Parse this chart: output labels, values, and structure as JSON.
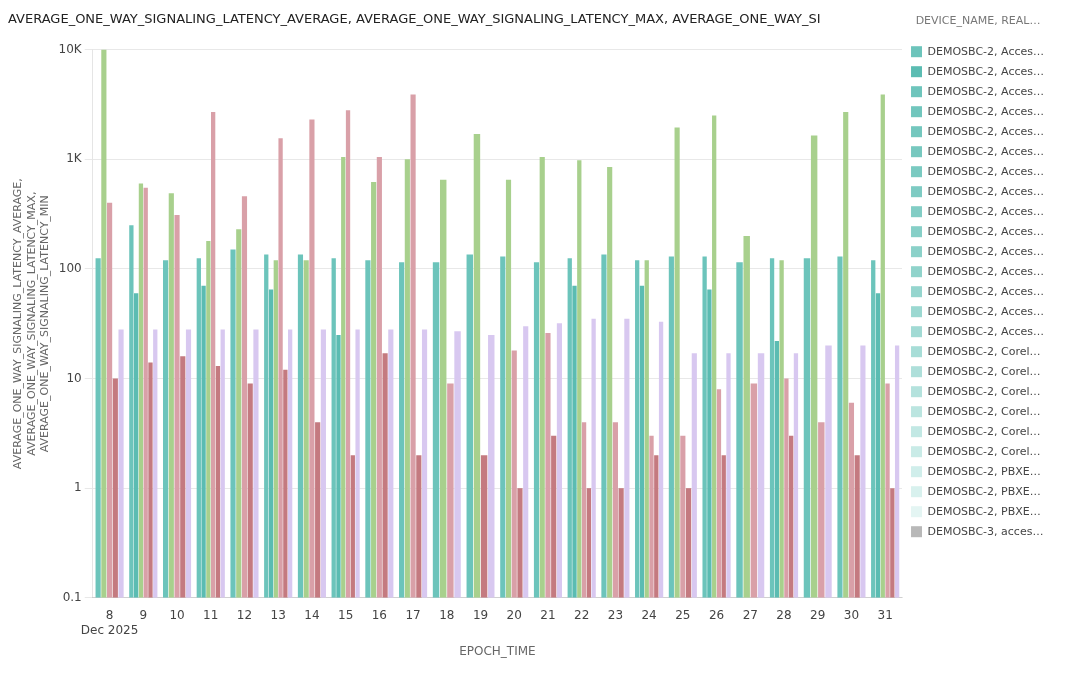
{
  "chart_data": {
    "type": "bar",
    "title": "AVERAGE_ONE_WAY_SIGNALING_LATENCY_AVERAGE, AVERAGE_ONE_WAY_SIGNALING_LATENCY_MAX, AVERAGE_ONE_WAY_SI",
    "xlabel": "EPOCH_TIME",
    "ylabel": "AVERAGE_ONE_WAY_SIGNALING_LATENCY_AVERAGE,\nAVERAGE_ONE_WAY_SIGNALING_LATENCY_MAX,\nAVERAGE_ONE_WAY_SIGNALING_LATENCY_MIN",
    "legend_title": "DEVICE_NAME, REAL…",
    "categories": [
      "8\nDec 2025",
      "9",
      "10",
      "11",
      "12",
      "13",
      "14",
      "15",
      "16",
      "17",
      "18",
      "19",
      "20",
      "21",
      "22",
      "23",
      "24",
      "25",
      "26",
      "27",
      "28",
      "29",
      "30",
      "31"
    ],
    "log": "y",
    "ylim": [
      0.1,
      10000
    ],
    "yticks": [
      0.1,
      1,
      10,
      100,
      {
        "value": 1000,
        "label": "1K"
      },
      {
        "value": 10000,
        "label": "10K"
      }
    ],
    "grid": "y",
    "legend": "right",
    "series": [
      {
        "name": "DEMOSBC-2, Acces…",
        "color": "#6cc4bb",
        "values": [
          125,
          250,
          120,
          125,
          150,
          135,
          135,
          125,
          120,
          115,
          115,
          135,
          130,
          115,
          125,
          135,
          120,
          130,
          130,
          115,
          125,
          125,
          130,
          120
        ]
      },
      {
        "name": "DEMOSBC-2, Acces…",
        "color": "#5bbcb2",
        "values": [
          null,
          60,
          null,
          70,
          null,
          65,
          null,
          25,
          null,
          null,
          null,
          null,
          null,
          null,
          70,
          null,
          70,
          null,
          65,
          null,
          22,
          null,
          null,
          60
        ]
      },
      {
        "name": "DEMOSBC-2, Acces…",
        "color": "#6ec5bc",
        "values": [
          null,
          null,
          null,
          null,
          null,
          null,
          null,
          null,
          null,
          null,
          null,
          null,
          null,
          null,
          null,
          null,
          null,
          null,
          null,
          null,
          null,
          null,
          null,
          null
        ]
      },
      {
        "name": "DEMOSBC-2, Acces…",
        "color": "#71c6bd",
        "values": [
          null,
          null,
          null,
          null,
          null,
          null,
          null,
          null,
          null,
          null,
          null,
          null,
          null,
          null,
          null,
          null,
          null,
          null,
          null,
          null,
          null,
          null,
          null,
          null
        ]
      },
      {
        "name": "DEMOSBC-2, Acces…",
        "color": "#74c7be",
        "values": [
          null,
          null,
          null,
          null,
          null,
          null,
          null,
          null,
          null,
          null,
          null,
          null,
          null,
          null,
          null,
          null,
          null,
          null,
          null,
          null,
          null,
          null,
          null,
          null
        ]
      },
      {
        "name": "DEMOSBC-2, Acces…",
        "color": "#77c8bf",
        "values": [
          null,
          null,
          null,
          null,
          null,
          null,
          null,
          null,
          null,
          null,
          null,
          null,
          null,
          null,
          null,
          null,
          null,
          null,
          null,
          null,
          null,
          null,
          null,
          null
        ]
      },
      {
        "name": "DEMOSBC-2, Acces…",
        "color": "#7acac1",
        "values": [
          null,
          null,
          null,
          null,
          null,
          null,
          null,
          null,
          null,
          null,
          null,
          null,
          null,
          null,
          null,
          null,
          null,
          null,
          null,
          null,
          null,
          null,
          null,
          null
        ]
      },
      {
        "name": "DEMOSBC-2, Acces…",
        "color": "#7ecbc3",
        "values": [
          null,
          null,
          null,
          null,
          null,
          null,
          null,
          null,
          null,
          null,
          null,
          null,
          null,
          null,
          null,
          null,
          null,
          null,
          null,
          null,
          null,
          null,
          null,
          null
        ]
      },
      {
        "name": "DEMOSBC-2, Acces…",
        "color": "#82cdc5",
        "values": [
          null,
          null,
          null,
          null,
          null,
          null,
          null,
          null,
          null,
          null,
          null,
          null,
          null,
          null,
          null,
          null,
          null,
          null,
          null,
          null,
          null,
          null,
          null,
          null
        ]
      },
      {
        "name": "DEMOSBC-2, Acces…",
        "color": "#86cfc7",
        "values": [
          null,
          null,
          null,
          null,
          null,
          null,
          null,
          null,
          null,
          null,
          null,
          null,
          null,
          null,
          null,
          null,
          null,
          null,
          null,
          null,
          null,
          null,
          null,
          null
        ]
      },
      {
        "name": "DEMOSBC-2, Acces…",
        "color": "#8bd1c9",
        "values": [
          null,
          null,
          null,
          null,
          null,
          null,
          null,
          null,
          null,
          null,
          null,
          null,
          null,
          null,
          null,
          null,
          null,
          null,
          null,
          null,
          null,
          null,
          null,
          null
        ]
      },
      {
        "name": "DEMOSBC-2, Acces…",
        "color": "#90d3cb",
        "values": [
          null,
          null,
          null,
          null,
          null,
          null,
          null,
          null,
          null,
          null,
          null,
          null,
          null,
          null,
          null,
          null,
          null,
          null,
          null,
          null,
          null,
          null,
          null,
          null
        ]
      },
      {
        "name": "DEMOSBC-2, Acces…",
        "color": "#95d5ce",
        "values": [
          null,
          null,
          null,
          null,
          null,
          null,
          null,
          null,
          null,
          null,
          null,
          null,
          null,
          null,
          null,
          null,
          null,
          null,
          null,
          null,
          null,
          null,
          null,
          null
        ]
      },
      {
        "name": "DEMOSBC-2, Acces…",
        "color": "#9bd8d1",
        "values": [
          null,
          null,
          null,
          null,
          null,
          null,
          null,
          null,
          null,
          null,
          null,
          null,
          null,
          null,
          null,
          null,
          null,
          null,
          null,
          null,
          null,
          null,
          null,
          null
        ]
      },
      {
        "name": "DEMOSBC-2, Acces…",
        "color": "#a1dad4",
        "values": [
          null,
          null,
          null,
          null,
          null,
          null,
          null,
          null,
          null,
          null,
          null,
          null,
          null,
          null,
          null,
          null,
          null,
          null,
          null,
          null,
          null,
          null,
          null,
          null
        ]
      },
      {
        "name": "DEMOSBC-2, Corel…",
        "color": "#a7ddd7",
        "values": [
          null,
          null,
          null,
          null,
          null,
          null,
          null,
          null,
          null,
          null,
          null,
          null,
          null,
          null,
          null,
          null,
          null,
          null,
          null,
          null,
          null,
          null,
          null,
          null
        ]
      },
      {
        "name": "DEMOSBC-2, Corel…",
        "color": "#aedfda",
        "values": [
          null,
          null,
          null,
          null,
          null,
          null,
          null,
          null,
          null,
          null,
          null,
          null,
          null,
          null,
          null,
          null,
          null,
          null,
          null,
          null,
          null,
          null,
          null,
          null
        ]
      },
      {
        "name": "DEMOSBC-2, Corel…",
        "color": "#b4e2dd",
        "values": [
          null,
          null,
          null,
          null,
          null,
          null,
          null,
          null,
          null,
          null,
          null,
          null,
          null,
          null,
          null,
          null,
          null,
          null,
          null,
          null,
          null,
          null,
          null,
          null
        ]
      },
      {
        "name": "DEMOSBC-2, Corel…",
        "color": "#bbe5e0",
        "values": [
          null,
          null,
          null,
          null,
          null,
          null,
          null,
          null,
          null,
          null,
          null,
          null,
          null,
          null,
          null,
          null,
          null,
          null,
          null,
          null,
          null,
          null,
          null,
          null
        ]
      },
      {
        "name": "DEMOSBC-2, Corel…",
        "color": "#c2e8e4",
        "values": [
          null,
          null,
          null,
          null,
          null,
          null,
          null,
          null,
          null,
          null,
          null,
          null,
          null,
          null,
          null,
          null,
          null,
          null,
          null,
          null,
          null,
          null,
          null,
          null
        ]
      },
      {
        "name": "DEMOSBC-2, Corel…",
        "color": "#c9ebe7",
        "values": [
          null,
          null,
          null,
          null,
          null,
          null,
          null,
          null,
          null,
          null,
          null,
          null,
          null,
          null,
          null,
          null,
          null,
          null,
          null,
          null,
          null,
          null,
          null,
          null
        ]
      },
      {
        "name": "DEMOSBC-2, PBXE…",
        "color": "#d0eeeb",
        "values": [
          null,
          null,
          null,
          null,
          null,
          null,
          null,
          null,
          null,
          null,
          null,
          null,
          null,
          null,
          null,
          null,
          null,
          null,
          null,
          null,
          null,
          null,
          null,
          null
        ]
      },
      {
        "name": "DEMOSBC-2, PBXE…",
        "color": "#d8f1ee",
        "values": [
          null,
          null,
          null,
          null,
          null,
          null,
          null,
          null,
          null,
          null,
          null,
          null,
          null,
          null,
          null,
          null,
          null,
          null,
          null,
          null,
          null,
          null,
          null,
          null
        ]
      },
      {
        "name": "DEMOSBC-2, PBXE…",
        "color": "#e4f5f3",
        "values": [
          null,
          null,
          null,
          null,
          null,
          null,
          null,
          null,
          null,
          null,
          null,
          null,
          null,
          null,
          null,
          null,
          null,
          null,
          null,
          null,
          null,
          null,
          null,
          null
        ]
      },
      {
        "name": "DEMOSBC-3, acces…",
        "color": "#b8b8b8",
        "values": [
          null,
          null,
          null,
          null,
          null,
          null,
          null,
          null,
          null,
          null,
          null,
          null,
          null,
          null,
          null,
          null,
          null,
          null,
          null,
          null,
          null,
          null,
          null,
          null
        ]
      },
      {
        "color": "#a8d08d",
        "values": [
          10000,
          600,
          490,
          180,
          230,
          120,
          120,
          1050,
          620,
          1000,
          650,
          1700,
          650,
          1050,
          980,
          850,
          120,
          1950,
          2500,
          200,
          120,
          1650,
          2700,
          3900
        ]
      },
      {
        "color": "#d9a0a8",
        "values": [
          400,
          550,
          310,
          2700,
          460,
          1550,
          2300,
          2800,
          1050,
          3900,
          9,
          null,
          18,
          26,
          4,
          4,
          3,
          3,
          8,
          9,
          10,
          4,
          6,
          9
        ]
      },
      {
        "color": "#c47a80",
        "values": [
          10,
          14,
          16,
          13,
          9,
          12,
          4,
          2,
          17,
          2,
          null,
          2,
          1,
          3,
          1,
          1,
          2,
          1,
          2,
          null,
          3,
          null,
          2,
          1
        ]
      },
      {
        "color": "#d8c8f0",
        "values": [
          28,
          28,
          28,
          28,
          28,
          28,
          28,
          28,
          28,
          28,
          27,
          25,
          30,
          32,
          35,
          35,
          33,
          17,
          17,
          17,
          17,
          20,
          20,
          20
        ]
      }
    ]
  }
}
